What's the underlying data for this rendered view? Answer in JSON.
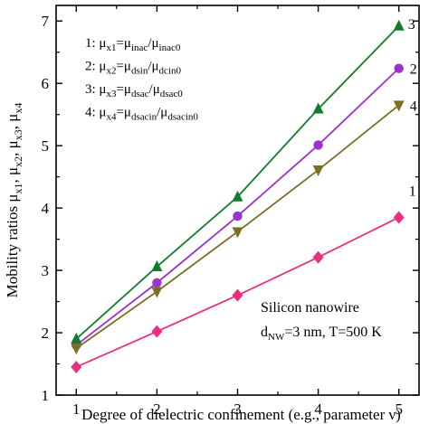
{
  "chart_data": {
    "type": "line",
    "xlabel": "Degree of dielectric confinement (e.g., parameter ν)",
    "ylabel": {
      "main": "Mobility ratios μ",
      "parts": [
        {
          "text": "Mobility ratios μ",
          "sub": "x1"
        },
        {
          "text": ", μ",
          "sub": "x2"
        },
        {
          "text": ", μ",
          "sub": "x3"
        },
        {
          "text": ", μ",
          "sub": "x4"
        }
      ]
    },
    "xlim": [
      0.75,
      5.25
    ],
    "ylim": [
      1,
      7.25
    ],
    "xticks": [
      1,
      2,
      3,
      4,
      5
    ],
    "yticks": [
      1,
      2,
      3,
      4,
      5,
      6,
      7
    ],
    "x": [
      1,
      2,
      3,
      4,
      5
    ],
    "series": [
      {
        "label": "1",
        "color": "#e8317e",
        "marker": "diamond",
        "values": [
          1.45,
          2.02,
          2.6,
          3.21,
          3.85
        ]
      },
      {
        "label": "2",
        "color": "#9a32cd",
        "marker": "circle",
        "values": [
          1.8,
          2.8,
          3.87,
          5.01,
          6.24
        ]
      },
      {
        "label": "3",
        "color": "#127d2b",
        "marker": "triangle-up",
        "values": [
          1.9,
          3.06,
          4.18,
          5.59,
          6.92
        ]
      },
      {
        "label": "4",
        "color": "#7b6f22",
        "marker": "triangle-down",
        "values": [
          1.75,
          2.66,
          3.62,
          4.61,
          5.65
        ]
      }
    ],
    "legend": {
      "placement": "top-left",
      "entries": [
        {
          "num": "1: ",
          "lhs_sub": "x1",
          "rhs1_sub": "inac",
          "rhs2_sub": "inac0"
        },
        {
          "num": "2: ",
          "lhs_sub": "x2",
          "rhs1_sub": "dsin",
          "rhs2_sub": "dcin0"
        },
        {
          "num": "3: ",
          "lhs_sub": "x3",
          "rhs1_sub": "dsac",
          "rhs2_sub": "dsac0"
        },
        {
          "num": "4: ",
          "lhs_sub": "x4",
          "rhs1_sub": "dsacin",
          "rhs2_sub": "dsacin0"
        }
      ],
      "mu": "μ",
      "eq": "=",
      "slash": "/"
    },
    "annotation": {
      "line1": "Silicon nanowire",
      "line2_pre": "d",
      "line2_sub": "NW",
      "line2_post": "=3 nm, T=500 K"
    }
  }
}
